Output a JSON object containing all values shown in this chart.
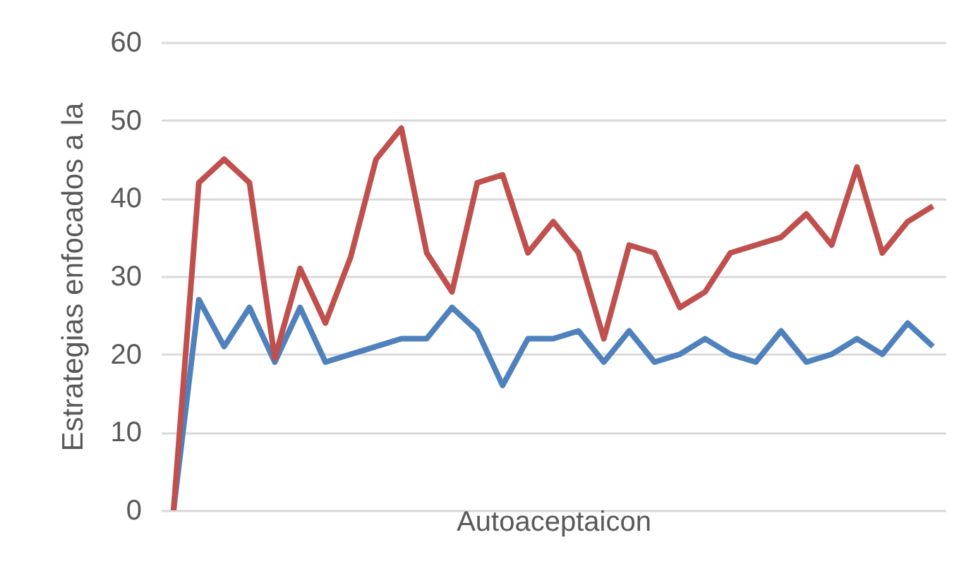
{
  "chart_data": {
    "type": "line",
    "xlabel": "Autoaceptaicon",
    "ylabel": "Estrategias enfocados a la",
    "categories": [
      null,
      null,
      null,
      null,
      null,
      null,
      null,
      null,
      null,
      null,
      null,
      null,
      null,
      null,
      null,
      null,
      null,
      null,
      null,
      null,
      null,
      null,
      null,
      null,
      null,
      null,
      null,
      null,
      null,
      null,
      null
    ],
    "series": [
      {
        "color": "#4f81bd",
        "values": [
          0,
          27,
          21,
          26,
          19,
          26,
          19,
          20,
          21,
          22,
          22,
          26,
          23,
          16,
          22,
          22,
          23,
          19,
          23,
          19,
          20,
          22,
          20,
          19,
          23,
          19,
          20,
          22,
          20,
          24,
          21
        ]
      },
      {
        "color": "#c0504d",
        "values": [
          0,
          42,
          45,
          42,
          19.5,
          31,
          24,
          32.5,
          45,
          49,
          33,
          28,
          42,
          43,
          33,
          37,
          33,
          22,
          34,
          33,
          26,
          28,
          33,
          34,
          35,
          38,
          34,
          44,
          33,
          37,
          39
        ]
      }
    ],
    "ylim": [
      0,
      60
    ],
    "yticks": [
      0,
      10,
      20,
      30,
      40,
      50,
      60
    ],
    "grid": "y",
    "tick_labels": "y",
    "marker": "none",
    "line_style": "solid"
  }
}
